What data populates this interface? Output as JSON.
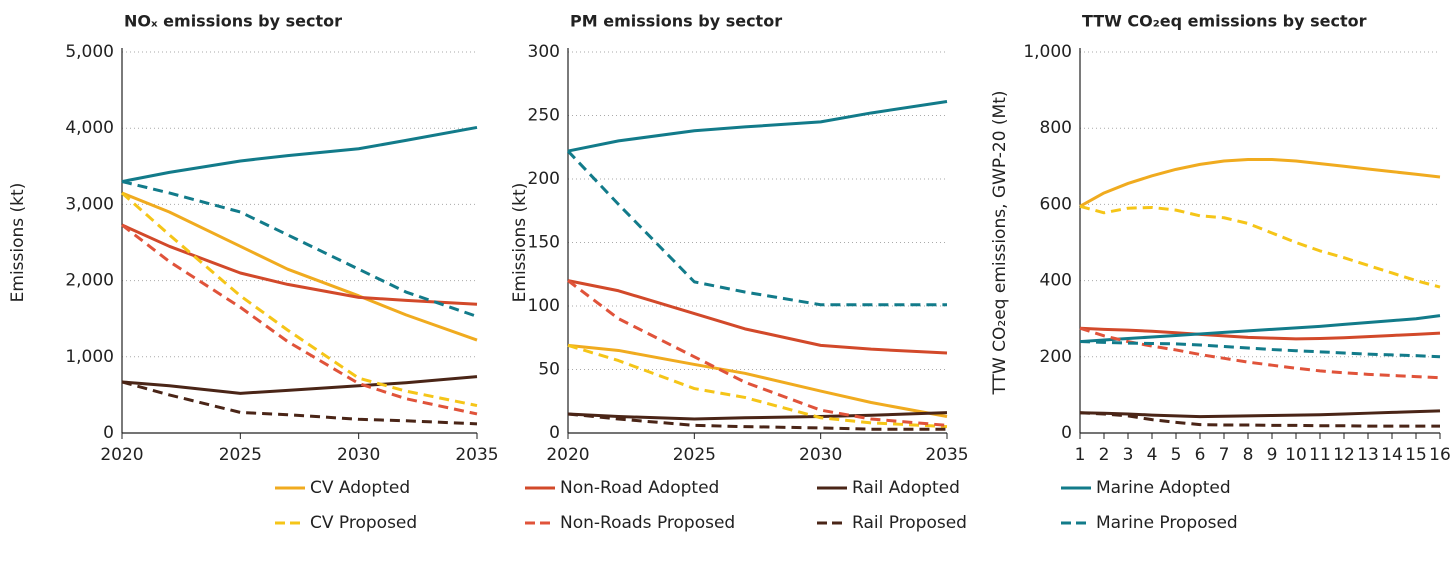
{
  "chart_data": [
    {
      "type": "line",
      "title": "NOₓ emissions by sector",
      "ylabel": "Emissions (kt)",
      "x": [
        2020,
        2022,
        2025,
        2027,
        2030,
        2032,
        2035
      ],
      "xlim": [
        2020,
        2035
      ],
      "xticks": [
        2020,
        2025,
        2030,
        2035
      ],
      "ylim": [
        0,
        5000
      ],
      "yticks": [
        0,
        {
          "value": 1000,
          "label": "1,000"
        },
        {
          "value": 2000,
          "label": "2,000"
        },
        {
          "value": 3000,
          "label": "3,000"
        },
        {
          "value": 4000,
          "label": "4,000"
        },
        {
          "value": 5000,
          "label": "5,000"
        }
      ],
      "grid": true,
      "series": [
        {
          "name": "CV Adopted",
          "color": "#f0ab1f",
          "dash": false,
          "values": [
            3150,
            2900,
            2450,
            2150,
            1800,
            1550,
            1220
          ]
        },
        {
          "name": "Non-Road Adopted",
          "color": "#d2492a",
          "dash": false,
          "values": [
            2730,
            2450,
            2100,
            1950,
            1780,
            1740,
            1690
          ]
        },
        {
          "name": "Rail Adopted",
          "color": "#4a2517",
          "dash": false,
          "values": [
            670,
            620,
            520,
            560,
            620,
            660,
            740
          ]
        },
        {
          "name": "Marine Adopted",
          "color": "#127b8a",
          "dash": false,
          "values": [
            3300,
            3420,
            3570,
            3640,
            3730,
            3840,
            4010
          ]
        },
        {
          "name": "CV Proposed",
          "color": "#f5c518",
          "dash": true,
          "values": [
            3150,
            2600,
            1800,
            1350,
            720,
            550,
            360
          ]
        },
        {
          "name": "Non-Roads Proposed",
          "color": "#e0533a",
          "dash": true,
          "values": [
            2730,
            2250,
            1650,
            1200,
            650,
            450,
            250
          ]
        },
        {
          "name": "Rail Proposed",
          "color": "#4a2517",
          "dash": true,
          "values": [
            670,
            500,
            270,
            240,
            180,
            160,
            120
          ]
        },
        {
          "name": "Marine Proposed",
          "color": "#127b8a",
          "dash": true,
          "values": [
            3300,
            3150,
            2900,
            2600,
            2150,
            1850,
            1530
          ]
        }
      ]
    },
    {
      "type": "line",
      "title": "PM emissions by sector",
      "ylabel": "Emissions (kt)",
      "x": [
        2020,
        2022,
        2025,
        2027,
        2030,
        2032,
        2035
      ],
      "xlim": [
        2020,
        2035
      ],
      "xticks": [
        2020,
        2025,
        2030,
        2035
      ],
      "ylim": [
        0,
        300
      ],
      "yticks": [
        0,
        50,
        100,
        150,
        200,
        250,
        300
      ],
      "grid": true,
      "series": [
        {
          "color": "#f0ab1f",
          "dash": false,
          "values": [
            69,
            65,
            54,
            47,
            33,
            24,
            13
          ]
        },
        {
          "color": "#d2492a",
          "dash": false,
          "values": [
            120,
            112,
            94,
            82,
            69,
            66,
            63
          ]
        },
        {
          "color": "#4a2517",
          "dash": false,
          "values": [
            15,
            13,
            11,
            12,
            13,
            14,
            16
          ]
        },
        {
          "color": "#127b8a",
          "dash": false,
          "values": [
            222,
            230,
            238,
            241,
            245,
            252,
            261
          ]
        },
        {
          "color": "#f5c518",
          "dash": true,
          "values": [
            69,
            57,
            35,
            28,
            12,
            8,
            5
          ]
        },
        {
          "color": "#e0533a",
          "dash": true,
          "values": [
            120,
            90,
            60,
            40,
            18,
            11,
            6
          ]
        },
        {
          "color": "#4a2517",
          "dash": true,
          "values": [
            15,
            11,
            6,
            5,
            4,
            3,
            3
          ]
        },
        {
          "color": "#127b8a",
          "dash": true,
          "values": [
            222,
            180,
            119,
            111,
            101,
            101,
            101
          ]
        }
      ]
    },
    {
      "type": "line",
      "title": "TTW CO₂eq emissions by sector",
      "ylabel": "TTW CO₂eq emissions, GWP-20 (Mt)",
      "x": [
        1,
        2,
        3,
        4,
        5,
        6,
        7,
        8,
        9,
        10,
        11,
        12,
        13,
        14,
        15,
        16
      ],
      "xlim": [
        1,
        16
      ],
      "xticks": [
        1,
        2,
        3,
        4,
        5,
        6,
        7,
        8,
        9,
        10,
        11,
        12,
        13,
        14,
        15,
        16
      ],
      "ylim": [
        0,
        1000
      ],
      "yticks": [
        0,
        200,
        400,
        600,
        800,
        {
          "value": 1000,
          "label": "1,000"
        }
      ],
      "grid": true,
      "series": [
        {
          "color": "#f0ab1f",
          "dash": false,
          "values": [
            595,
            630,
            655,
            675,
            692,
            705,
            714,
            718,
            718,
            714,
            707,
            700,
            693,
            686,
            679,
            672
          ]
        },
        {
          "color": "#d2492a",
          "dash": false,
          "values": [
            275,
            272,
            270,
            267,
            263,
            259,
            255,
            251,
            249,
            247,
            248,
            250,
            253,
            256,
            259,
            262
          ]
        },
        {
          "color": "#4a2517",
          "dash": false,
          "values": [
            53,
            52,
            50,
            47,
            45,
            43,
            44,
            45,
            46,
            47,
            48,
            50,
            52,
            54,
            56,
            58
          ]
        },
        {
          "color": "#127b8a",
          "dash": false,
          "values": [
            240,
            244,
            248,
            252,
            256,
            260,
            264,
            268,
            272,
            276,
            280,
            285,
            290,
            295,
            300,
            308
          ]
        },
        {
          "color": "#f5c518",
          "dash": true,
          "values": [
            595,
            578,
            590,
            592,
            585,
            570,
            565,
            550,
            525,
            500,
            478,
            460,
            440,
            420,
            400,
            383
          ]
        },
        {
          "color": "#e0533a",
          "dash": true,
          "values": [
            275,
            255,
            240,
            228,
            218,
            206,
            196,
            186,
            178,
            170,
            163,
            158,
            154,
            151,
            148,
            145
          ]
        },
        {
          "color": "#4a2517",
          "dash": true,
          "values": [
            53,
            50,
            45,
            35,
            28,
            22,
            21,
            21,
            20,
            20,
            19,
            19,
            18,
            18,
            18,
            18
          ]
        },
        {
          "color": "#127b8a",
          "dash": true,
          "values": [
            240,
            238,
            236,
            235,
            234,
            231,
            227,
            223,
            219,
            216,
            213,
            210,
            207,
            205,
            203,
            200
          ]
        }
      ]
    }
  ]
}
